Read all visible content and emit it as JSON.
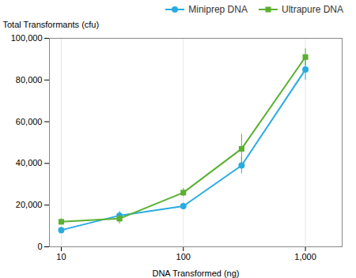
{
  "chart_data": {
    "type": "line",
    "xlabel": "DNA Transformed (ng)",
    "ylabel": "Total Transformants (cfu)",
    "x": [
      10,
      30,
      100,
      300,
      1000
    ],
    "series": [
      {
        "name": "Miniprep DNA",
        "color": "#29ABE2",
        "marker": "circle",
        "values": [
          8000,
          15000,
          19500,
          39000,
          85000
        ],
        "errors": [
          1500,
          2000,
          1500,
          4000,
          5000
        ]
      },
      {
        "name": "Ultrapure DNA",
        "color": "#5AB031",
        "marker": "square",
        "values": [
          12000,
          13500,
          26000,
          47000,
          91000
        ],
        "errors": [
          1500,
          2500,
          2000,
          7000,
          4000
        ]
      }
    ],
    "log": "x",
    "xlim": [
      8,
      2000
    ],
    "xticks": [
      10,
      100,
      {
        "value": 1000,
        "label": "1,000"
      }
    ],
    "ylim": [
      0,
      100000
    ],
    "yticks": [
      0,
      {
        "value": 20000,
        "label": "20,000"
      },
      {
        "value": 40000,
        "label": "40,000"
      },
      {
        "value": 60000,
        "label": "60,000"
      },
      {
        "value": 80000,
        "label": "80,000"
      },
      {
        "value": 100000,
        "label": "100,000"
      }
    ],
    "grid": "x",
    "legend": "upper right"
  }
}
